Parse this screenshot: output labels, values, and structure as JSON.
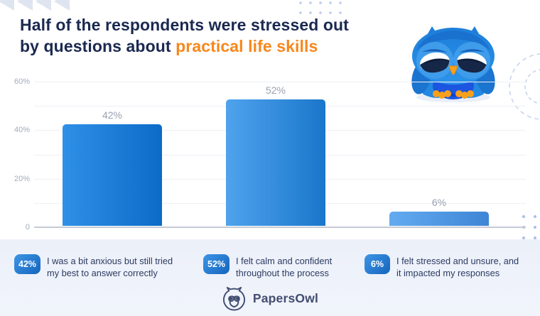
{
  "title": {
    "line1": "Half of the respondents were stressed out",
    "line2_prefix": "by questions about ",
    "line2_highlight": "practical life skills"
  },
  "chart_data": {
    "type": "bar",
    "title": "Half of the respondents were stressed out by questions about practical life skills",
    "categories": [
      "I was a bit anxious but still tried my best to answer correctly",
      "I felt calm and confident throughout the process",
      "I felt stressed and unsure, and it impacted my responses"
    ],
    "values": [
      42,
      52,
      6
    ],
    "value_labels": [
      "42%",
      "52%",
      "6%"
    ],
    "xlabel": "",
    "ylabel": "",
    "ylim": [
      0,
      60
    ],
    "grid": true,
    "grid_step": 10,
    "yticks": [
      {
        "label": "60%",
        "value": 60
      },
      {
        "label": "40%",
        "value": 40
      },
      {
        "label": "20%",
        "value": 20
      },
      {
        "label": "0",
        "value": 0
      }
    ],
    "bar_gradients": [
      [
        "#2F90E8",
        "#0B6BC6"
      ],
      [
        "#4FA3ED",
        "#1A76CB"
      ],
      [
        "#63ABF0",
        "#3E85D6"
      ]
    ],
    "legend_position": "bottom"
  },
  "legend": {
    "items": [
      {
        "badge": "42%",
        "line1": "I was a bit anxious but still tried",
        "line2": "my best to answer correctly"
      },
      {
        "badge": "52%",
        "line1": "I felt calm and confident",
        "line2": "throughout the process"
      },
      {
        "badge": "6%",
        "line1": "I felt stressed and unsure, and",
        "line2": "it impacted my responses"
      }
    ]
  },
  "footer": {
    "brand": "PapersOwl"
  },
  "colors": {
    "accent_orange": "#F7871D",
    "title_navy": "#1B2951",
    "axis_gray": "#A3AABB",
    "badge_gradient": [
      "#3D95E5",
      "#1565BD"
    ],
    "band_bg": "#EEF1FA",
    "owl_blue": "#2189E4",
    "owl_orange": "#F6A01C"
  },
  "icons": {
    "owl_illustration": "sad-owl-icon",
    "logo": "papersowl-logo-icon",
    "triangles": "triangles-pattern-icon",
    "dots_top": "dots-grid-icon",
    "dots_bottom": "dots-grid-icon",
    "dashed_rings": "dashed-circles-icon"
  }
}
